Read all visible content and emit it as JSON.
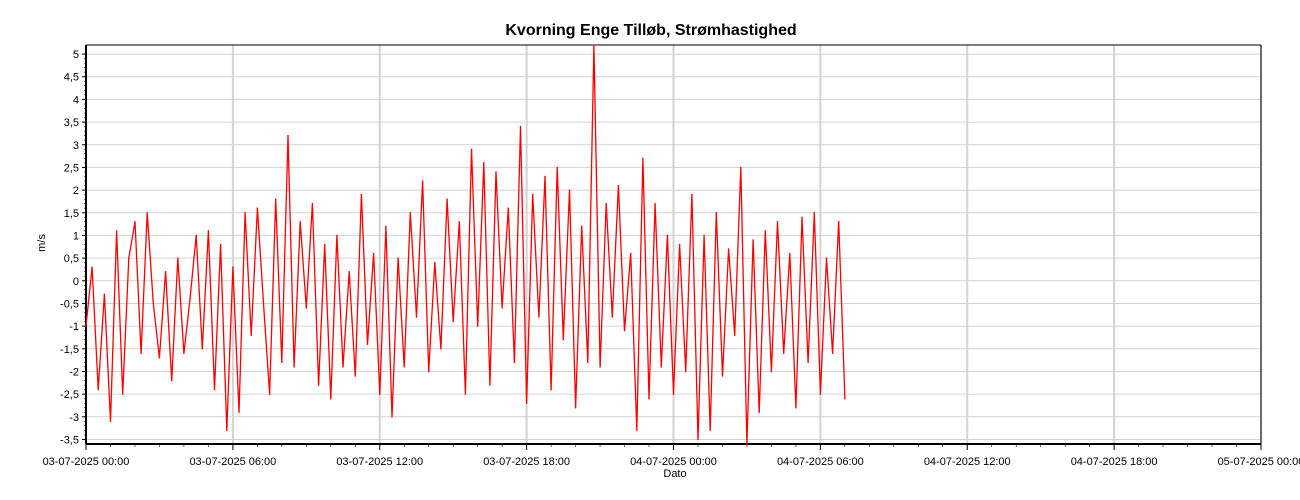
{
  "chart_data": {
    "type": "line",
    "title": "Kvorning Enge Tilløb, Strømhastighed",
    "xlabel": "Dato",
    "ylabel": "m/s",
    "ylim": [
      -3.6,
      5.2
    ],
    "xlim": [
      "03-07-2025 00:00",
      "05-07-2025 00:00"
    ],
    "grid": true,
    "x_ticks": [
      "03-07-2025 00:00",
      "03-07-2025 06:00",
      "03-07-2025 12:00",
      "03-07-2025 18:00",
      "04-07-2025 00:00",
      "04-07-2025 06:00",
      "04-07-2025 12:00",
      "04-07-2025 18:00",
      "05-07-2025 00:00"
    ],
    "y_ticks": [
      {
        "value": 5,
        "label": "5"
      },
      {
        "value": 4.5,
        "label": "4,5"
      },
      {
        "value": 4,
        "label": "4"
      },
      {
        "value": 3.5,
        "label": "3,5"
      },
      {
        "value": 3,
        "label": "3"
      },
      {
        "value": 2.5,
        "label": "2,5"
      },
      {
        "value": 2,
        "label": "2"
      },
      {
        "value": 1.5,
        "label": "1,5"
      },
      {
        "value": 1,
        "label": "1"
      },
      {
        "value": 0.5,
        "label": "0,5"
      },
      {
        "value": 0,
        "label": "0"
      },
      {
        "value": -0.5,
        "label": "-0,5"
      },
      {
        "value": -1,
        "label": "-1"
      },
      {
        "value": -1.5,
        "label": "-1,5"
      },
      {
        "value": -2,
        "label": "-2"
      },
      {
        "value": -2.5,
        "label": "-2,5"
      },
      {
        "value": -3,
        "label": "-3"
      },
      {
        "value": -3.5,
        "label": "-3,5"
      }
    ],
    "series": [
      {
        "color": "#ff0000",
        "x": [
          "03-07-2025 00:00",
          "03-07-2025 00:15",
          "03-07-2025 00:30",
          "03-07-2025 00:45",
          "03-07-2025 01:00",
          "03-07-2025 01:15",
          "03-07-2025 01:30",
          "03-07-2025 01:45",
          "03-07-2025 02:00",
          "03-07-2025 02:15",
          "03-07-2025 02:30",
          "03-07-2025 02:45",
          "03-07-2025 03:00",
          "03-07-2025 03:15",
          "03-07-2025 03:30",
          "03-07-2025 03:45",
          "03-07-2025 04:00",
          "03-07-2025 04:15",
          "03-07-2025 04:30",
          "03-07-2025 04:45",
          "03-07-2025 05:00",
          "03-07-2025 05:15",
          "03-07-2025 05:30",
          "03-07-2025 05:45",
          "03-07-2025 06:00",
          "03-07-2025 06:15",
          "03-07-2025 06:30",
          "03-07-2025 06:45",
          "03-07-2025 07:00",
          "03-07-2025 07:15",
          "03-07-2025 07:30",
          "03-07-2025 07:45",
          "03-07-2025 08:00",
          "03-07-2025 08:15",
          "03-07-2025 08:30",
          "03-07-2025 08:45",
          "03-07-2025 09:00",
          "03-07-2025 09:15",
          "03-07-2025 09:30",
          "03-07-2025 09:45",
          "03-07-2025 10:00",
          "03-07-2025 10:15",
          "03-07-2025 10:30",
          "03-07-2025 10:45",
          "03-07-2025 11:00",
          "03-07-2025 11:15",
          "03-07-2025 11:30",
          "03-07-2025 11:45",
          "03-07-2025 12:00",
          "03-07-2025 12:15",
          "03-07-2025 12:30",
          "03-07-2025 12:45",
          "03-07-2025 13:00",
          "03-07-2025 13:15",
          "03-07-2025 13:30",
          "03-07-2025 13:45",
          "03-07-2025 14:00",
          "03-07-2025 14:15",
          "03-07-2025 14:30",
          "03-07-2025 14:45",
          "03-07-2025 15:00",
          "03-07-2025 15:15",
          "03-07-2025 15:30",
          "03-07-2025 15:45",
          "03-07-2025 16:00",
          "03-07-2025 16:15",
          "03-07-2025 16:30",
          "03-07-2025 16:45",
          "03-07-2025 17:00",
          "03-07-2025 17:15",
          "03-07-2025 17:30",
          "03-07-2025 17:45",
          "03-07-2025 18:00",
          "03-07-2025 18:15",
          "03-07-2025 18:30",
          "03-07-2025 18:45",
          "03-07-2025 19:00",
          "03-07-2025 19:15",
          "03-07-2025 19:30",
          "03-07-2025 19:45",
          "03-07-2025 20:00",
          "03-07-2025 20:15",
          "03-07-2025 20:30",
          "03-07-2025 20:45",
          "03-07-2025 21:00",
          "03-07-2025 21:15",
          "03-07-2025 21:30",
          "03-07-2025 21:45",
          "03-07-2025 22:00",
          "03-07-2025 22:15",
          "03-07-2025 22:30",
          "03-07-2025 22:45",
          "03-07-2025 23:00",
          "03-07-2025 23:15",
          "03-07-2025 23:30",
          "03-07-2025 23:45",
          "04-07-2025 00:00",
          "04-07-2025 00:15",
          "04-07-2025 00:30",
          "04-07-2025 00:45",
          "04-07-2025 01:00",
          "04-07-2025 01:15",
          "04-07-2025 01:30",
          "04-07-2025 01:45",
          "04-07-2025 02:00",
          "04-07-2025 02:15",
          "04-07-2025 02:30",
          "04-07-2025 02:45",
          "04-07-2025 03:00",
          "04-07-2025 03:15",
          "04-07-2025 03:30",
          "04-07-2025 03:45",
          "04-07-2025 04:00",
          "04-07-2025 04:15",
          "04-07-2025 04:30",
          "04-07-2025 04:45",
          "04-07-2025 05:00",
          "04-07-2025 05:15",
          "04-07-2025 05:30",
          "04-07-2025 05:45",
          "04-07-2025 06:00",
          "04-07-2025 06:15",
          "04-07-2025 06:30",
          "04-07-2025 06:45",
          "04-07-2025 07:00"
        ],
        "values": [
          -1.0,
          0.3,
          -2.4,
          -0.3,
          -3.1,
          1.1,
          -2.5,
          0.5,
          1.3,
          -1.6,
          1.5,
          -0.5,
          -1.7,
          0.2,
          -2.2,
          0.5,
          -1.6,
          -0.4,
          1.0,
          -1.5,
          1.1,
          -2.4,
          0.8,
          -3.3,
          0.3,
          -2.9,
          1.5,
          -1.2,
          1.6,
          -0.5,
          -2.5,
          1.8,
          -1.8,
          3.2,
          -1.9,
          1.3,
          -0.6,
          1.7,
          -2.3,
          0.8,
          -2.6,
          1.0,
          -1.9,
          0.2,
          -2.1,
          1.9,
          -1.4,
          0.6,
          -2.5,
          1.2,
          -3.0,
          0.5,
          -1.9,
          1.5,
          -0.8,
          2.2,
          -2.0,
          0.4,
          -1.5,
          1.8,
          -0.9,
          1.3,
          -2.5,
          2.9,
          -1.0,
          2.6,
          -2.3,
          2.4,
          -0.6,
          1.6,
          -1.8,
          3.4,
          -2.7,
          1.9,
          -0.8,
          2.3,
          -2.4,
          2.5,
          -1.3,
          2.0,
          -2.8,
          1.2,
          -1.8,
          5.2,
          -1.9,
          1.7,
          -0.8,
          2.1,
          -1.1,
          0.6,
          -3.3,
          2.7,
          -2.6,
          1.7,
          -1.9,
          1.0,
          -2.5,
          0.8,
          -2.0,
          1.9,
          -3.5,
          1.0,
          -3.3,
          1.5,
          -2.1,
          0.7,
          -1.2,
          2.5,
          -3.6,
          0.9,
          -2.9,
          1.1,
          -2.0,
          1.3,
          -1.6,
          0.6,
          -2.8,
          1.4,
          -1.8,
          1.5,
          -2.5,
          0.5,
          -1.6,
          1.3,
          -2.6
        ]
      }
    ]
  }
}
